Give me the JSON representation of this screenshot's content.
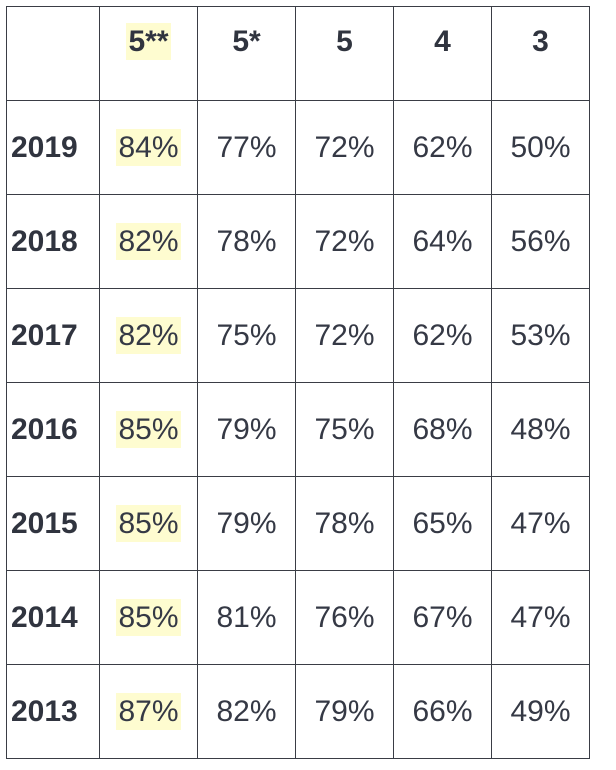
{
  "table": {
    "header": [
      "",
      "5**",
      "5*",
      "5",
      "4",
      "3"
    ],
    "highlight_color": "#fefcd0",
    "rows": [
      {
        "year": "2019",
        "values": [
          "84%",
          "77%",
          "72%",
          "62%",
          "50%"
        ]
      },
      {
        "year": "2018",
        "values": [
          "82%",
          "78%",
          "72%",
          "64%",
          "56%"
        ]
      },
      {
        "year": "2017",
        "values": [
          "82%",
          "75%",
          "72%",
          "62%",
          "53%"
        ]
      },
      {
        "year": "2016",
        "values": [
          "85%",
          "79%",
          "75%",
          "68%",
          "48%"
        ]
      },
      {
        "year": "2015",
        "values": [
          "85%",
          "79%",
          "78%",
          "65%",
          "47%"
        ]
      },
      {
        "year": "2014",
        "values": [
          "85%",
          "81%",
          "76%",
          "67%",
          "47%"
        ]
      },
      {
        "year": "2013",
        "values": [
          "87%",
          "82%",
          "79%",
          "66%",
          "49%"
        ]
      }
    ]
  }
}
